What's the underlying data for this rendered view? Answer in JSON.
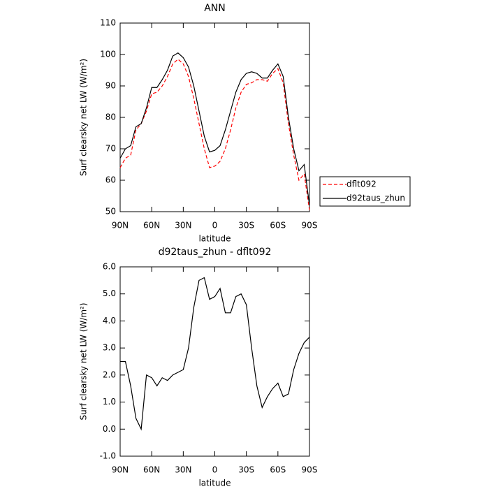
{
  "chart_data": [
    {
      "type": "line",
      "title": "ANN",
      "x_label": "latitude",
      "y_label": "Surf clearsky net LW (W/m²)",
      "x": [
        90,
        85,
        80,
        75,
        70,
        65,
        60,
        55,
        50,
        45,
        40,
        35,
        30,
        25,
        20,
        15,
        10,
        5,
        0,
        -5,
        -10,
        -15,
        -20,
        -25,
        -30,
        -35,
        -40,
        -45,
        -50,
        -55,
        -60,
        -65,
        -70,
        -75,
        -80,
        -85,
        -90
      ],
      "series": [
        {
          "name": "dflt092",
          "color": "#ff0000",
          "dash": true,
          "values": [
            64,
            67,
            68,
            76,
            78,
            82,
            87.5,
            88,
            90,
            93,
            97,
            98.5,
            97,
            93,
            86,
            78,
            70,
            64,
            64.5,
            66,
            70,
            76,
            83,
            88,
            90.5,
            91,
            92,
            92,
            91.5,
            94,
            95.5,
            91,
            78,
            68,
            60,
            62,
            50.5
          ]
        },
        {
          "name": "d92taus_zhun",
          "color": "#000000",
          "dash": false,
          "values": [
            67,
            70,
            71,
            77,
            78,
            83,
            89.5,
            89.5,
            92,
            95,
            99.5,
            100.5,
            99,
            96,
            90,
            82,
            74,
            69,
            69.5,
            71,
            76,
            82,
            88,
            92,
            94,
            94.5,
            94,
            92.5,
            92.5,
            95,
            97,
            93,
            80,
            70,
            63,
            65,
            52
          ]
        }
      ],
      "xlim": [
        90,
        -90
      ],
      "xticks": [
        {
          "value": 90,
          "label": "90N"
        },
        {
          "value": 60,
          "label": "60N"
        },
        {
          "value": 30,
          "label": "30N"
        },
        0,
        {
          "value": -30,
          "label": "30S"
        },
        {
          "value": -60,
          "label": "60S"
        },
        {
          "value": -90,
          "label": "90S"
        }
      ],
      "ylim": [
        50,
        110
      ],
      "yticks": [
        50,
        60,
        70,
        80,
        90,
        100,
        110
      ],
      "legend": "right"
    },
    {
      "type": "line",
      "title": "d92taus_zhun - dflt092",
      "x_label": "latitude",
      "y_label": "Surf clearsky net LW (W/m²)",
      "x": [
        90,
        85,
        80,
        75,
        70,
        65,
        60,
        55,
        50,
        45,
        40,
        35,
        30,
        25,
        20,
        15,
        10,
        5,
        0,
        -5,
        -10,
        -15,
        -20,
        -25,
        -30,
        -35,
        -40,
        -45,
        -50,
        -55,
        -60,
        -65,
        -70,
        -75,
        -80,
        -85,
        -90
      ],
      "values": [
        2.5,
        2.5,
        1.6,
        0.4,
        0.0,
        2.0,
        1.9,
        1.6,
        1.9,
        1.8,
        2.0,
        2.1,
        2.2,
        3.0,
        4.5,
        5.5,
        5.6,
        4.8,
        4.9,
        5.2,
        4.3,
        4.3,
        4.9,
        5.0,
        4.6,
        3.0,
        1.6,
        0.8,
        1.2,
        1.5,
        1.7,
        1.2,
        1.3,
        2.2,
        2.8,
        3.2,
        3.4
      ],
      "color": "#000000",
      "xlim": [
        90,
        -90
      ],
      "xticks": [
        {
          "value": 90,
          "label": "90N"
        },
        {
          "value": 60,
          "label": "60N"
        },
        {
          "value": 30,
          "label": "30N"
        },
        0,
        {
          "value": -30,
          "label": "30S"
        },
        {
          "value": -60,
          "label": "60S"
        },
        {
          "value": -90,
          "label": "90S"
        }
      ],
      "ylim": [
        -1,
        6
      ],
      "yticks": [
        {
          "value": -1,
          "label": "-1.0"
        },
        {
          "value": 0,
          "label": "0.0"
        },
        {
          "value": 1,
          "label": "1.0"
        },
        {
          "value": 2,
          "label": "2.0"
        },
        {
          "value": 3,
          "label": "3.0"
        },
        {
          "value": 4,
          "label": "4.0"
        },
        {
          "value": 5,
          "label": "5.0"
        },
        {
          "value": 6,
          "label": "6.0"
        }
      ]
    }
  ]
}
